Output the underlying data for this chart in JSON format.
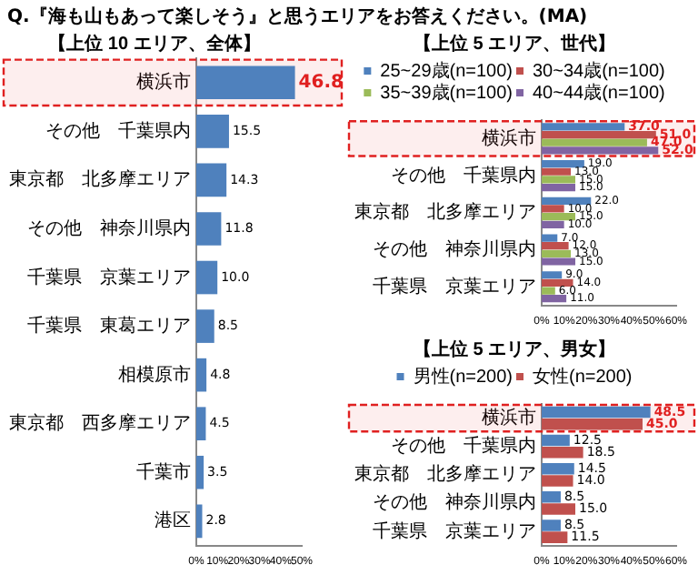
{
  "chart_data": [
    {
      "type": "bar",
      "title": "【上位 10 エリア、全体】",
      "annotations": [
        "Q.『海も山もあって楽しそう』と思うエリアをお答えください。(MA)"
      ],
      "orientation": "horizontal",
      "categories": [
        "横浜市",
        "その他　千葉県内",
        "東京都　北多摩エリア",
        "その他　神奈川県内",
        "千葉県　京葉エリア",
        "千葉県　東葛エリア",
        "相模原市",
        "東京都　西多摩エリア",
        "千葉市",
        "港区"
      ],
      "series": [
        {
          "color": "#4f81bd",
          "values": [
            46.8,
            15.5,
            14.3,
            11.8,
            10.0,
            8.5,
            4.8,
            4.5,
            3.5,
            2.8
          ],
          "value_labels": [
            "46.8",
            "15.5",
            "14.3",
            "11.8",
            "10.0",
            "8.5",
            "4.8",
            "4.5",
            "3.5",
            "2.8"
          ]
        }
      ],
      "bands": [
        {
          "axis": "y",
          "from": "横浜市",
          "to": "横浜市",
          "color": "#e02020"
        }
      ],
      "xlim": [
        0,
        50
      ],
      "xticks": [
        {
          "value": 0,
          "label": "0%"
        },
        {
          "value": 10,
          "label": "10%"
        },
        {
          "value": 20,
          "label": "20%"
        },
        {
          "value": 30,
          "label": "30%"
        },
        {
          "value": 40,
          "label": "40%"
        },
        {
          "value": 50,
          "label": "50%"
        }
      ],
      "legend": false
    },
    {
      "type": "bar",
      "title": "【上位 5 エリア、世代】",
      "orientation": "horizontal",
      "categories": [
        "横浜市",
        "その他　千葉県内",
        "東京都　北多摩エリア",
        "その他　神奈川県内",
        "千葉県　京葉エリア"
      ],
      "series": [
        {
          "name": "25~29歳(n=100)",
          "color": "#4f81bd",
          "values": [
            37,
            19,
            22,
            7,
            9
          ],
          "value_labels": [
            "37.0",
            "19.0",
            "22.0",
            "7.0",
            "9.0"
          ]
        },
        {
          "name": "30~34歳(n=100)",
          "color": "#c0504d",
          "values": [
            51,
            13,
            10,
            12,
            14
          ],
          "value_labels": [
            "51.0",
            "13.0",
            "10.0",
            "12.0",
            "14.0"
          ]
        },
        {
          "name": "35~39歳(n=100)",
          "color": "#9bbb59",
          "values": [
            47,
            15,
            15,
            13,
            6
          ],
          "value_labels": [
            "47.0",
            "15.0",
            "15.0",
            "13.0",
            "6.0"
          ]
        },
        {
          "name": "40~44歳(n=100)",
          "color": "#8064a2",
          "values": [
            52,
            15,
            10,
            15,
            11
          ],
          "value_labels": [
            "52.0",
            "15.0",
            "10.0",
            "15.0",
            "11.0"
          ]
        }
      ],
      "bands": [
        {
          "axis": "y",
          "from": "横浜市",
          "to": "横浜市",
          "color": "#e02020"
        }
      ],
      "xlim": [
        0,
        60
      ],
      "xticks": [
        {
          "value": 0,
          "label": "0%"
        },
        {
          "value": 10,
          "label": "10%"
        },
        {
          "value": 20,
          "label": "20%"
        },
        {
          "value": 30,
          "label": "30%"
        },
        {
          "value": 40,
          "label": "40%"
        },
        {
          "value": 50,
          "label": "50%"
        },
        {
          "value": 60,
          "label": "60%"
        }
      ],
      "legend": "top"
    },
    {
      "type": "bar",
      "title": "【上位 5 エリア、男女】",
      "orientation": "horizontal",
      "categories": [
        "横浜市",
        "その他　千葉県内",
        "東京都　北多摩エリア",
        "その他　神奈川県内",
        "千葉県　京葉エリア"
      ],
      "series": [
        {
          "name": "男性(n=200)",
          "color": "#4f81bd",
          "values": [
            48.5,
            12.5,
            14.5,
            8.5,
            8.5
          ],
          "value_labels": [
            "48.5",
            "12.5",
            "14.5",
            "8.5",
            "8.5"
          ]
        },
        {
          "name": "女性(n=200)",
          "color": "#c0504d",
          "values": [
            45.0,
            18.5,
            14.0,
            15.0,
            11.5
          ],
          "value_labels": [
            "45.0",
            "18.5",
            "14.0",
            "15.0",
            "11.5"
          ]
        }
      ],
      "bands": [
        {
          "axis": "y",
          "from": "横浜市",
          "to": "横浜市",
          "color": "#e02020"
        }
      ],
      "xlim": [
        0,
        60
      ],
      "xticks": [
        {
          "value": 0,
          "label": "0%"
        },
        {
          "value": 10,
          "label": "10%"
        },
        {
          "value": 20,
          "label": "20%"
        },
        {
          "value": 30,
          "label": "30%"
        },
        {
          "value": 40,
          "label": "40%"
        },
        {
          "value": 50,
          "label": "50%"
        },
        {
          "value": 60,
          "label": "60%"
        }
      ],
      "legend": "top"
    }
  ]
}
